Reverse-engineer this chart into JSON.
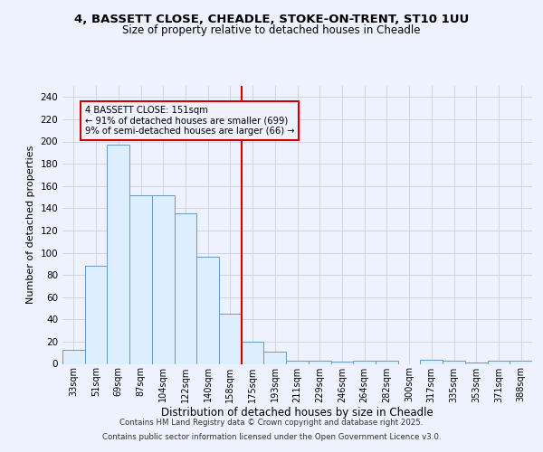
{
  "title_line1": "4, BASSETT CLOSE, CHEADLE, STOKE-ON-TRENT, ST10 1UU",
  "title_line2": "Size of property relative to detached houses in Cheadle",
  "xlabel": "Distribution of detached houses by size in Cheadle",
  "ylabel": "Number of detached properties",
  "footer_line1": "Contains HM Land Registry data © Crown copyright and database right 2025.",
  "footer_line2": "Contains public sector information licensed under the Open Government Licence v3.0.",
  "bar_labels": [
    "33sqm",
    "51sqm",
    "69sqm",
    "87sqm",
    "104sqm",
    "122sqm",
    "140sqm",
    "158sqm",
    "175sqm",
    "193sqm",
    "211sqm",
    "229sqm",
    "246sqm",
    "264sqm",
    "282sqm",
    "300sqm",
    "317sqm",
    "335sqm",
    "353sqm",
    "371sqm",
    "388sqm"
  ],
  "bar_values": [
    13,
    88,
    197,
    152,
    152,
    135,
    96,
    45,
    20,
    11,
    3,
    3,
    2,
    3,
    3,
    0,
    4,
    3,
    1,
    3,
    3
  ],
  "bar_color": "#ddeeff",
  "bar_edge_color": "#6699cc",
  "vline_x_index": 7.5,
  "vline_color": "#cc0000",
  "annotation_text": "4 BASSETT CLOSE: 151sqm\n← 91% of detached houses are smaller (699)\n9% of semi-detached houses are larger (66) →",
  "annotation_box_edge": "#cc0000",
  "background_color": "#eef2ff",
  "ylim": [
    0,
    250
  ],
  "yticks": [
    0,
    20,
    40,
    60,
    80,
    100,
    120,
    140,
    160,
    180,
    200,
    220,
    240
  ],
  "grid_color": "#ccccdd"
}
